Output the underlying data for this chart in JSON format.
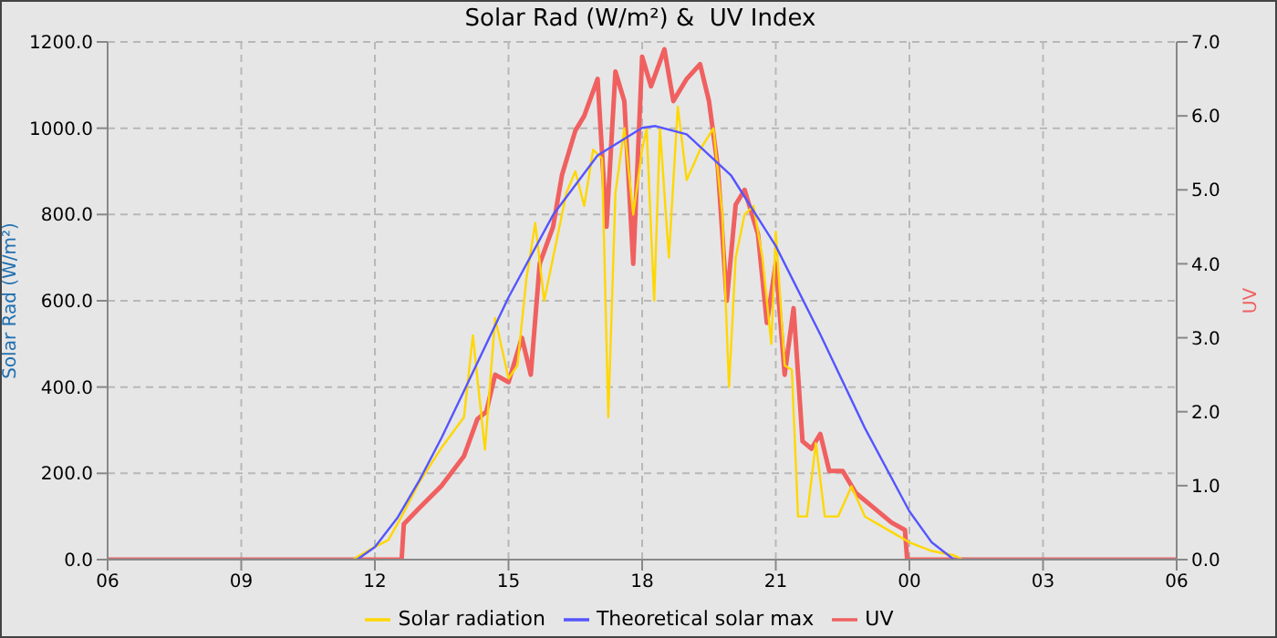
{
  "chart_data": {
    "type": "line",
    "title": "Solar Rad (W/m²) &  UV Index",
    "ylabel": "Solar Rad (W/m²)",
    "y2label": "UV",
    "xlim": [
      6,
      30
    ],
    "xticks": [
      {
        "value": 6,
        "label": "06"
      },
      {
        "value": 9,
        "label": "09"
      },
      {
        "value": 12,
        "label": "12"
      },
      {
        "value": 15,
        "label": "15"
      },
      {
        "value": 18,
        "label": "18"
      },
      {
        "value": 21,
        "label": "21"
      },
      {
        "value": 24,
        "label": "00"
      },
      {
        "value": 27,
        "label": "03"
      },
      {
        "value": 30,
        "label": "06"
      }
    ],
    "ylim": [
      0,
      1200
    ],
    "yticks": [
      {
        "value": 0,
        "label": "0.0"
      },
      {
        "value": 200,
        "label": "200.0"
      },
      {
        "value": 400,
        "label": "400.0"
      },
      {
        "value": 600,
        "label": "600.0"
      },
      {
        "value": 800,
        "label": "800.0"
      },
      {
        "value": 1000,
        "label": "1000.0"
      },
      {
        "value": 1200,
        "label": "1200.0"
      }
    ],
    "y2lim": [
      0,
      7
    ],
    "y2ticks": [
      {
        "value": 0,
        "label": "0.0"
      },
      {
        "value": 1,
        "label": "1.0"
      },
      {
        "value": 2,
        "label": "2.0"
      },
      {
        "value": 3,
        "label": "3.0"
      },
      {
        "value": 4,
        "label": "4.0"
      },
      {
        "value": 5,
        "label": "5.0"
      },
      {
        "value": 6,
        "label": "6.0"
      },
      {
        "value": 7,
        "label": "7.0"
      }
    ],
    "grid": true,
    "legend": "bottom",
    "marker": "none",
    "series": [
      {
        "name": "Solar radiation",
        "color": "#ffd700",
        "x": [
          6,
          11.5,
          12,
          12.3,
          12.6,
          13,
          13.5,
          14,
          14.2,
          14.47,
          14.7,
          15,
          15.2,
          15.4,
          15.6,
          15.8,
          16,
          16.3,
          16.5,
          16.7,
          16.9,
          17.1,
          17.24,
          17.4,
          17.6,
          17.8,
          18.0,
          18.1,
          18.27,
          18.4,
          18.6,
          18.8,
          19,
          19.3,
          19.6,
          19.8,
          19.95,
          20.1,
          20.3,
          20.5,
          20.7,
          20.9,
          21,
          21.2,
          21.36,
          21.5,
          21.7,
          21.9,
          22.1,
          22.4,
          22.7,
          23,
          23.5,
          24,
          24.5,
          25,
          25.2,
          30
        ],
        "values": [
          0,
          0,
          30,
          45,
          100,
          180,
          260,
          330,
          520,
          255,
          560,
          420,
          450,
          650,
          780,
          600,
          700,
          850,
          900,
          820,
          950,
          930,
          330,
          850,
          1000,
          800,
          950,
          1000,
          600,
          1000,
          700,
          1050,
          880,
          950,
          1000,
          800,
          400,
          700,
          800,
          820,
          700,
          500,
          760,
          450,
          440,
          100,
          100,
          270,
          100,
          100,
          170,
          100,
          70,
          40,
          20,
          10,
          0,
          0
        ]
      },
      {
        "name": "Theoretical solar max",
        "color": "#5555ff",
        "x": [
          6,
          11.6,
          12,
          12.5,
          13,
          13.5,
          14,
          15,
          16,
          17,
          18,
          18.3,
          19,
          20,
          21,
          22,
          23,
          24,
          24.5,
          25,
          30
        ],
        "values": [
          0,
          0,
          29,
          96,
          184,
          283,
          391,
          608,
          799,
          937,
          1001,
          1005,
          986,
          890,
          727,
          522,
          305,
          112,
          40,
          0,
          0
        ]
      },
      {
        "name": "UV",
        "color": "#f06060",
        "axis": "y2",
        "x": [
          6,
          12.6,
          12.65,
          13,
          13.5,
          14,
          14.3,
          14.5,
          14.7,
          15,
          15.3,
          15.5,
          15.7,
          16,
          16.2,
          16.5,
          16.7,
          17,
          17.2,
          17.4,
          17.6,
          17.8,
          18,
          18.2,
          18.5,
          18.7,
          19,
          19.3,
          19.5,
          19.7,
          19.9,
          20.1,
          20.3,
          20.6,
          20.8,
          21,
          21.2,
          21.4,
          21.6,
          21.8,
          22,
          22.2,
          22.5,
          22.8,
          23.2,
          23.6,
          23.9,
          23.95,
          30
        ],
        "values": [
          0,
          0,
          0.48,
          0.7,
          1.0,
          1.4,
          1.9,
          2.0,
          2.5,
          2.4,
          3.0,
          2.5,
          4.0,
          4.5,
          5.2,
          5.8,
          6.0,
          6.5,
          4.5,
          6.6,
          6.2,
          4.0,
          6.8,
          6.4,
          6.9,
          6.2,
          6.5,
          6.7,
          6.2,
          5.3,
          3.5,
          4.8,
          5.0,
          4.4,
          3.2,
          4.0,
          2.5,
          3.4,
          1.6,
          1.5,
          1.7,
          1.2,
          1.2,
          0.9,
          0.7,
          0.5,
          0.4,
          0,
          0
        ]
      }
    ]
  }
}
